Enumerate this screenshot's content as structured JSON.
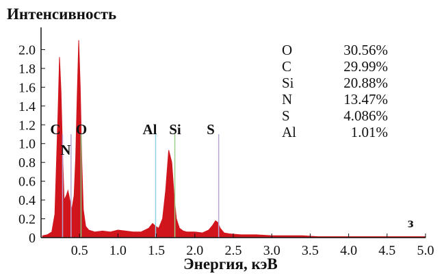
{
  "chart_data": {
    "type": "area",
    "ylabel": "Интенсивность",
    "xlabel": "Энергия, кэВ",
    "corner_label": "з",
    "xlim": [
      0,
      5.0
    ],
    "ylim": [
      0,
      2.2
    ],
    "x_ticks": [
      "0.5",
      "1.0",
      "1.5",
      "2.0",
      "2.5",
      "3.0",
      "3.5",
      "4.0",
      "4.5",
      "5.0"
    ],
    "x_tick_values": [
      0.5,
      1.0,
      1.5,
      2.0,
      2.5,
      3.0,
      3.5,
      4.0,
      4.5,
      5.0
    ],
    "y_ticks": [
      "0",
      "0.2",
      "0.4",
      "0.6",
      "0.8",
      "1.0",
      "1.2",
      "1.4",
      "1.6",
      "1.8",
      "2.0"
    ],
    "y_tick_values": [
      0,
      0.2,
      0.4,
      0.6,
      0.8,
      1.0,
      1.2,
      1.4,
      1.6,
      1.8,
      2.0
    ],
    "series_color": "#d0151d",
    "series": [
      {
        "x": [
          0.02,
          0.08,
          0.14,
          0.18,
          0.22,
          0.24,
          0.26,
          0.28,
          0.3,
          0.33,
          0.35,
          0.38,
          0.4,
          0.43,
          0.45,
          0.47,
          0.49,
          0.51,
          0.53,
          0.55,
          0.58,
          0.62,
          0.7,
          0.8,
          0.9,
          1.0,
          1.1,
          1.2,
          1.3,
          1.4,
          1.45,
          1.49,
          1.53,
          1.58,
          1.62,
          1.66,
          1.7,
          1.73,
          1.76,
          1.8,
          1.85,
          1.9,
          2.0,
          2.1,
          2.18,
          2.23,
          2.27,
          2.3,
          2.33,
          2.38,
          2.45,
          2.6,
          2.8,
          3.0,
          3.2,
          3.4,
          3.6,
          3.8,
          4.0,
          4.2,
          4.4,
          4.6,
          4.8,
          5.0
        ],
        "values": [
          0.02,
          0.03,
          0.06,
          0.25,
          1.3,
          1.92,
          1.55,
          0.9,
          0.4,
          0.45,
          0.5,
          0.38,
          0.3,
          0.45,
          0.85,
          1.5,
          2.1,
          1.6,
          0.8,
          0.3,
          0.12,
          0.08,
          0.06,
          0.07,
          0.06,
          0.08,
          0.07,
          0.06,
          0.06,
          0.1,
          0.15,
          0.12,
          0.1,
          0.2,
          0.5,
          0.93,
          0.8,
          0.45,
          0.2,
          0.1,
          0.07,
          0.06,
          0.06,
          0.05,
          0.08,
          0.13,
          0.18,
          0.16,
          0.1,
          0.05,
          0.04,
          0.03,
          0.03,
          0.02,
          0.02,
          0.02,
          0.01,
          0.01,
          0.01,
          0.01,
          0.01,
          0.01,
          0.01,
          0.01
        ]
      }
    ],
    "element_lines": [
      {
        "label": "C",
        "x": 0.28,
        "color": "#b7a6d6"
      },
      {
        "label": "N",
        "x": 0.39,
        "color": "#b7a6d6"
      },
      {
        "label": "O",
        "x": 0.52,
        "color": "#7fc97f"
      },
      {
        "label": "Al",
        "x": 1.49,
        "color": "#8fd3e8"
      },
      {
        "label": "Si",
        "x": 1.74,
        "color": "#9bd08a"
      },
      {
        "label": "S",
        "x": 2.31,
        "color": "#b7a6d6"
      }
    ],
    "composition": [
      {
        "element": "O",
        "value": "30.56%"
      },
      {
        "element": "C",
        "value": "29.99%"
      },
      {
        "element": "Si",
        "value": "20.88%"
      },
      {
        "element": "N",
        "value": "13.47%"
      },
      {
        "element": "S",
        "value": "4.086%"
      },
      {
        "element": "Al",
        "value": "1.01%"
      }
    ]
  }
}
